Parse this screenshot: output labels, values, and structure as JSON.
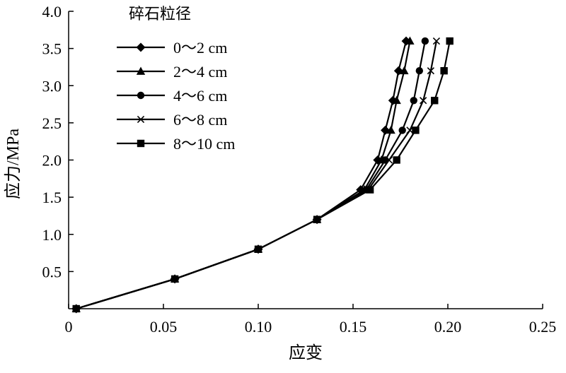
{
  "chart_data": {
    "type": "line",
    "xlabel": "应变",
    "ylabel": "应力/MPa",
    "xlim": [
      0,
      0.25
    ],
    "ylim": [
      0,
      4.0
    ],
    "x_ticks": [
      "0",
      "0.05",
      "0.10",
      "0.15",
      "0.20",
      "0.25"
    ],
    "x_tick_values": [
      0,
      0.05,
      0.1,
      0.15,
      0.2,
      0.25
    ],
    "y_ticks": [
      "0.5",
      "1.0",
      "1.5",
      "2.0",
      "2.5",
      "3.0",
      "3.5",
      "4.0"
    ],
    "y_tick_values": [
      0.5,
      1.0,
      1.5,
      2.0,
      2.5,
      3.0,
      3.5,
      4.0
    ],
    "grid": false,
    "legend_title": "碎石粒径",
    "legend_position": "top-left",
    "series": [
      {
        "name": "0～2 cm",
        "marker": "diamond",
        "x": [
          0.004,
          0.056,
          0.1,
          0.131,
          0.154,
          0.163,
          0.167,
          0.171,
          0.174,
          0.178
        ],
        "y": [
          0.0,
          0.4,
          0.8,
          1.2,
          1.6,
          2.0,
          2.4,
          2.8,
          3.2,
          3.6
        ]
      },
      {
        "name": "2～4 cm",
        "marker": "triangle",
        "x": [
          0.004,
          0.056,
          0.1,
          0.131,
          0.156,
          0.165,
          0.17,
          0.173,
          0.177,
          0.18
        ],
        "y": [
          0.0,
          0.4,
          0.8,
          1.2,
          1.6,
          2.0,
          2.4,
          2.8,
          3.2,
          3.6
        ]
      },
      {
        "name": "4～6 cm",
        "marker": "circle",
        "x": [
          0.004,
          0.056,
          0.1,
          0.131,
          0.157,
          0.167,
          0.176,
          0.182,
          0.185,
          0.188
        ],
        "y": [
          0.0,
          0.4,
          0.8,
          1.2,
          1.6,
          2.0,
          2.4,
          2.8,
          3.2,
          3.6
        ]
      },
      {
        "name": "6～8 cm",
        "marker": "x",
        "x": [
          0.004,
          0.056,
          0.1,
          0.131,
          0.158,
          0.169,
          0.18,
          0.187,
          0.191,
          0.194
        ],
        "y": [
          0.0,
          0.4,
          0.8,
          1.2,
          1.6,
          2.0,
          2.4,
          2.8,
          3.2,
          3.6
        ]
      },
      {
        "name": "8～10 cm",
        "marker": "square",
        "x": [
          0.004,
          0.056,
          0.1,
          0.131,
          0.159,
          0.173,
          0.183,
          0.193,
          0.198,
          0.201
        ],
        "y": [
          0.0,
          0.4,
          0.8,
          1.2,
          1.6,
          2.0,
          2.4,
          2.8,
          3.2,
          3.6
        ]
      }
    ]
  }
}
